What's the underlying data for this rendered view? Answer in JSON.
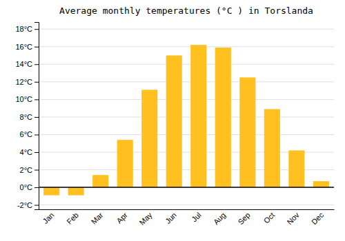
{
  "chart_data": {
    "type": "bar",
    "title": "Average monthly temperatures (°C ) in Torslanda",
    "categories": [
      "Jan",
      "Feb",
      "Mar",
      "Apr",
      "May",
      "Jun",
      "Jul",
      "Aug",
      "Sep",
      "Oct",
      "Nov",
      "Dec"
    ],
    "values": [
      -0.9,
      -0.9,
      1.4,
      5.4,
      11.1,
      15.0,
      16.2,
      15.9,
      12.5,
      8.9,
      4.2,
      0.7
    ],
    "color": "#FFC020",
    "ylim": [
      -2.5,
      18.8
    ],
    "yticks": [
      {
        "value": -2,
        "label": "-2°C"
      },
      {
        "value": 0,
        "label": "0°C"
      },
      {
        "value": 2,
        "label": "2°C"
      },
      {
        "value": 4,
        "label": "4°C"
      },
      {
        "value": 6,
        "label": "6°C"
      },
      {
        "value": 8,
        "label": "8°C"
      },
      {
        "value": 10,
        "label": "10°C"
      },
      {
        "value": 12,
        "label": "12°C"
      },
      {
        "value": 14,
        "label": "14°C"
      },
      {
        "value": 16,
        "label": "16°C"
      },
      {
        "value": 18,
        "label": "18°C"
      }
    ],
    "grid": true
  }
}
